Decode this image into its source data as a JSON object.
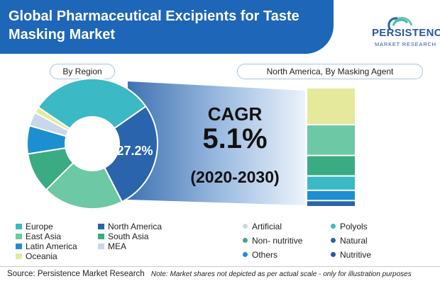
{
  "title": "Global Pharmaceutical Excipients for Taste Masking Market",
  "logo": {
    "name": "PERSISTENCE",
    "sub": "MARKET RESEARCH"
  },
  "region_chart_label": "By Region",
  "agent_chart_label": "North America, By Masking Agent",
  "cagr": {
    "label": "CAGR",
    "value": "5.1%",
    "period": "(2020-2030)"
  },
  "highlight_label": "27.2%",
  "colors": {
    "banner": "#1e66b8",
    "europe": "#3bb9c4",
    "north_america": "#2a64ad",
    "east_asia": "#6cc8a5",
    "south_asia": "#3bab84",
    "latin_america": "#1c8fd1",
    "mea": "#c7d8ea",
    "oceania": "#e5e99b",
    "connector": "#2a64ad"
  },
  "chart_data": [
    {
      "type": "pie",
      "title": "By Region",
      "donut": true,
      "categories": [
        "North America",
        "South Asia",
        "East Asia",
        "Latin America",
        "MEA",
        "Oceania",
        "Europe"
      ],
      "values": [
        27.2,
        20.0,
        10.0,
        7.0,
        3.5,
        1.5,
        30.8
      ],
      "colors": [
        "#2a64ad",
        "#6cc8a5",
        "#3bab84",
        "#1c8fd1",
        "#c7d8ea",
        "#e5e99b",
        "#3bb9c4"
      ],
      "data_labels": {
        "North America": "27.2%"
      },
      "legend": [
        "Europe",
        "North America",
        "East Asia",
        "South Asia",
        "Latin America",
        "MEA",
        "Oceania"
      ],
      "legend_colors": [
        "#3bb9c4",
        "#2a64ad",
        "#6cc8a5",
        "#3bab84",
        "#1c8fd1",
        "#c7d8ea",
        "#e5e99b"
      ]
    },
    {
      "type": "bar",
      "stacked": true,
      "title": "North America, By Masking Agent",
      "categories": [
        "Nutritive",
        "Others",
        "Natural",
        "Non- nutritive",
        "Polyols",
        "Artificial"
      ],
      "values": [
        3,
        5,
        7,
        10,
        15,
        18
      ],
      "colors": [
        "#2a64ad",
        "#1c8fd1",
        "#3bb9c4",
        "#3bab84",
        "#6cc8a5",
        "#e5e99b"
      ],
      "legend": [
        {
          "name": "Artificial",
          "color": "#c7d8ea"
        },
        {
          "name": "Polyols",
          "color": "#3bb9c4"
        },
        {
          "name": "Non- nutritive",
          "color": "#3bab84"
        },
        {
          "name": "Natural",
          "color": "#2a64ad"
        },
        {
          "name": "Others",
          "color": "#1c8fd1"
        },
        {
          "name": "Nutritive",
          "color": "#2a57a0"
        }
      ]
    }
  ],
  "source": "Source: Persistence Market Research",
  "note": "Note: Market shares not depicted as per actual scale - only for illustration purposes"
}
